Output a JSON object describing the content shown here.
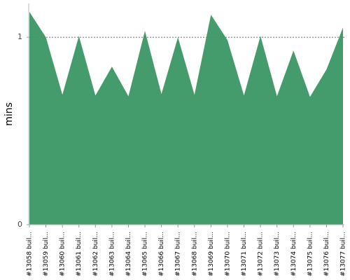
{
  "chart_data": {
    "type": "area",
    "y_label": "mins",
    "categories": [
      "#13058 buil...",
      "#13059 buil...",
      "#13060 buil...",
      "#13061 buil...",
      "#13062 buil...",
      "#13063 buil...",
      "#13064 buil...",
      "#13065 buil...",
      "#13066 buil...",
      "#13067 buil...",
      "#13068 buil...",
      "#13069 buil...",
      "#13070 buil...",
      "#13071 buil...",
      "#13072 buil...",
      "#13073 buil...",
      "#13074 buil...",
      "#13075 buil...",
      "#13076 buil...",
      "#13077 buil..."
    ],
    "values": [
      1.135,
      1.0,
      0.693,
      1.007,
      0.689,
      0.843,
      0.685,
      1.034,
      0.697,
      1.0,
      0.693,
      1.12,
      0.985,
      0.689,
      1.007,
      0.685,
      0.929,
      0.682,
      0.828,
      1.052
    ],
    "color": "#449c6c",
    "ylim": [
      0,
      1.18
    ],
    "yticks": [
      0,
      1
    ],
    "grid": true
  }
}
